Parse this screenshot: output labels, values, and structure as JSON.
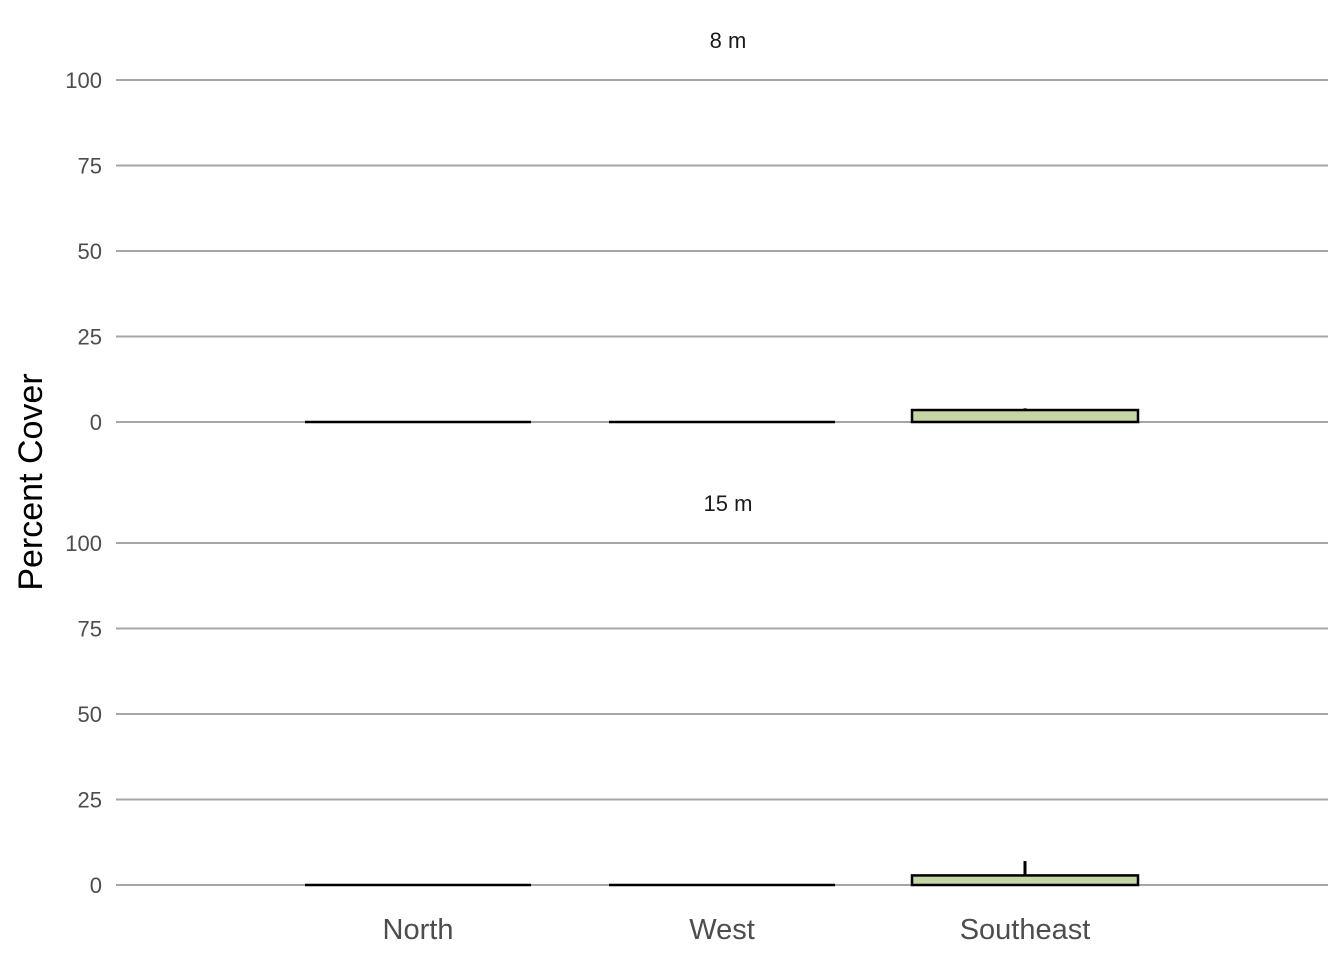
{
  "chart_data": {
    "type": "bar",
    "ylabel": "Percent Cover",
    "xlabel": "",
    "categories": [
      "North",
      "West",
      "Southeast"
    ],
    "ylim": [
      0,
      100
    ],
    "yticks": [
      0,
      25,
      50,
      75,
      100
    ],
    "grid": "horizontal",
    "bar_color": "#c5d5a5",
    "panels": [
      {
        "title": "8 m",
        "values": [
          0,
          0,
          3.5
        ],
        "error_upper": [
          0,
          0,
          4.0
        ]
      },
      {
        "title": "15 m",
        "values": [
          0,
          0,
          2.8
        ],
        "error_upper": [
          0,
          0,
          7.0
        ]
      }
    ]
  }
}
